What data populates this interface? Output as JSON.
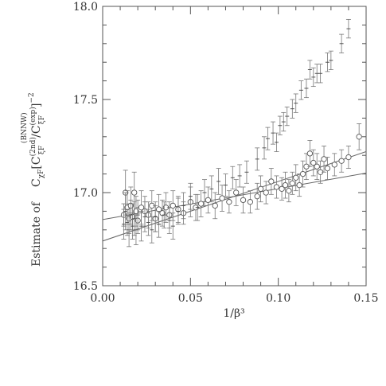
{
  "chart_data": {
    "type": "scatter",
    "title": "",
    "xlabel": "1/β³",
    "ylabel": {
      "prefix": "Estimate of",
      "main": "C",
      "sub_main": "χF",
      "bracket_open": "[",
      "frac_main": "C",
      "frac_sub": "ξF",
      "frac_sup": "(2nd)",
      "slash": "/",
      "den_main": "C",
      "den_sub": "ξF",
      "den_sup": "(exp)",
      "bracket_close": "]",
      "power": "−2",
      "over_sup": "(BNNW)"
    },
    "xlim": [
      0.0,
      0.15
    ],
    "ylim": [
      16.5,
      18.0
    ],
    "x_ticks": [
      0.0,
      0.05,
      0.1,
      0.15
    ],
    "x_tick_labels": [
      "0.00",
      "0.05",
      "0.10",
      "0.15"
    ],
    "y_ticks": [
      16.5,
      17.0,
      17.5,
      18.0
    ],
    "y_tick_labels": [
      "16.5",
      "17.0",
      "17.5",
      "18.0"
    ],
    "grid": false,
    "legend": "none",
    "series": [
      {
        "marker": "circle",
        "points": [
          [
            0.012,
            16.88,
            0.06
          ],
          [
            0.013,
            17.0,
            0.12
          ],
          [
            0.014,
            16.92,
            0.09
          ],
          [
            0.015,
            16.86,
            0.08
          ],
          [
            0.016,
            16.93,
            0.1
          ],
          [
            0.017,
            16.87,
            0.07
          ],
          [
            0.018,
            17.0,
            0.11
          ],
          [
            0.019,
            16.9,
            0.08
          ],
          [
            0.02,
            16.85,
            0.07
          ],
          [
            0.022,
            16.92,
            0.09
          ],
          [
            0.024,
            16.9,
            0.08
          ],
          [
            0.026,
            16.88,
            0.07
          ],
          [
            0.028,
            16.93,
            0.08
          ],
          [
            0.03,
            16.86,
            0.07
          ],
          [
            0.032,
            16.91,
            0.08
          ],
          [
            0.034,
            16.89,
            0.07
          ],
          [
            0.036,
            16.92,
            0.08
          ],
          [
            0.038,
            16.88,
            0.07
          ],
          [
            0.04,
            16.93,
            0.08
          ],
          [
            0.043,
            16.91,
            0.07
          ],
          [
            0.046,
            16.89,
            0.06
          ],
          [
            0.05,
            16.95,
            0.08
          ],
          [
            0.053,
            16.92,
            0.07
          ],
          [
            0.056,
            16.94,
            0.07
          ],
          [
            0.06,
            16.96,
            0.07
          ],
          [
            0.064,
            16.93,
            0.07
          ],
          [
            0.068,
            16.97,
            0.07
          ],
          [
            0.072,
            16.95,
            0.06
          ],
          [
            0.076,
            17.0,
            0.07
          ],
          [
            0.08,
            16.96,
            0.07
          ],
          [
            0.084,
            16.95,
            0.06
          ],
          [
            0.088,
            16.98,
            0.07
          ],
          [
            0.09,
            17.02,
            0.07
          ],
          [
            0.093,
            17.0,
            0.06
          ],
          [
            0.096,
            17.06,
            0.07
          ],
          [
            0.099,
            17.03,
            0.06
          ],
          [
            0.102,
            17.02,
            0.06
          ],
          [
            0.104,
            17.04,
            0.07
          ],
          [
            0.106,
            17.01,
            0.06
          ],
          [
            0.108,
            17.05,
            0.06
          ],
          [
            0.11,
            17.08,
            0.07
          ],
          [
            0.112,
            17.04,
            0.06
          ],
          [
            0.114,
            17.1,
            0.07
          ],
          [
            0.116,
            17.14,
            0.07
          ],
          [
            0.118,
            17.21,
            0.07
          ],
          [
            0.12,
            17.16,
            0.07
          ],
          [
            0.122,
            17.14,
            0.07
          ],
          [
            0.124,
            17.11,
            0.06
          ],
          [
            0.126,
            17.18,
            0.07
          ],
          [
            0.128,
            17.13,
            0.06
          ],
          [
            0.132,
            17.15,
            0.06
          ],
          [
            0.136,
            17.17,
            0.06
          ],
          [
            0.14,
            17.19,
            0.06
          ],
          [
            0.146,
            17.3,
            0.07
          ]
        ]
      },
      {
        "marker": "cross",
        "points": [
          [
            0.012,
            16.83,
            0.08
          ],
          [
            0.013,
            16.9,
            0.1
          ],
          [
            0.014,
            16.84,
            0.07
          ],
          [
            0.015,
            16.8,
            0.09
          ],
          [
            0.016,
            16.88,
            0.08
          ],
          [
            0.017,
            16.82,
            0.07
          ],
          [
            0.018,
            16.86,
            0.09
          ],
          [
            0.019,
            16.8,
            0.08
          ],
          [
            0.02,
            16.88,
            0.08
          ],
          [
            0.022,
            16.82,
            0.08
          ],
          [
            0.024,
            16.87,
            0.08
          ],
          [
            0.026,
            16.84,
            0.07
          ],
          [
            0.028,
            16.8,
            0.07
          ],
          [
            0.03,
            16.87,
            0.08
          ],
          [
            0.032,
            16.83,
            0.07
          ],
          [
            0.035,
            16.88,
            0.07
          ],
          [
            0.038,
            16.85,
            0.07
          ],
          [
            0.04,
            16.82,
            0.07
          ],
          [
            0.043,
            16.9,
            0.07
          ],
          [
            0.046,
            16.93,
            0.07
          ],
          [
            0.05,
            16.98,
            0.07
          ],
          [
            0.054,
            16.92,
            0.07
          ],
          [
            0.058,
            17.0,
            0.07
          ],
          [
            0.062,
            17.02,
            0.07
          ],
          [
            0.066,
            17.06,
            0.07
          ],
          [
            0.07,
            17.04,
            0.06
          ],
          [
            0.074,
            17.08,
            0.06
          ],
          [
            0.078,
            17.09,
            0.06
          ],
          [
            0.082,
            17.11,
            0.06
          ],
          [
            0.088,
            17.18,
            0.06
          ],
          [
            0.092,
            17.24,
            0.06
          ],
          [
            0.094,
            17.29,
            0.06
          ],
          [
            0.097,
            17.32,
            0.06
          ],
          [
            0.099,
            17.27,
            0.05
          ],
          [
            0.101,
            17.36,
            0.05
          ],
          [
            0.103,
            17.38,
            0.05
          ],
          [
            0.105,
            17.41,
            0.05
          ],
          [
            0.108,
            17.45,
            0.05
          ],
          [
            0.11,
            17.48,
            0.05
          ],
          [
            0.113,
            17.55,
            0.05
          ],
          [
            0.116,
            17.56,
            0.05
          ],
          [
            0.118,
            17.66,
            0.05
          ],
          [
            0.12,
            17.62,
            0.05
          ],
          [
            0.122,
            17.64,
            0.05
          ],
          [
            0.124,
            17.64,
            0.05
          ],
          [
            0.128,
            17.7,
            0.05
          ],
          [
            0.13,
            17.71,
            0.05
          ],
          [
            0.136,
            17.8,
            0.05
          ],
          [
            0.14,
            17.88,
            0.05
          ]
        ]
      }
    ],
    "fit_lines": [
      {
        "x": [
          0.0,
          0.15
        ],
        "y": [
          16.855,
          17.105
        ]
      },
      {
        "x": [
          0.0,
          0.15
        ],
        "y": [
          16.74,
          17.22
        ]
      }
    ]
  }
}
